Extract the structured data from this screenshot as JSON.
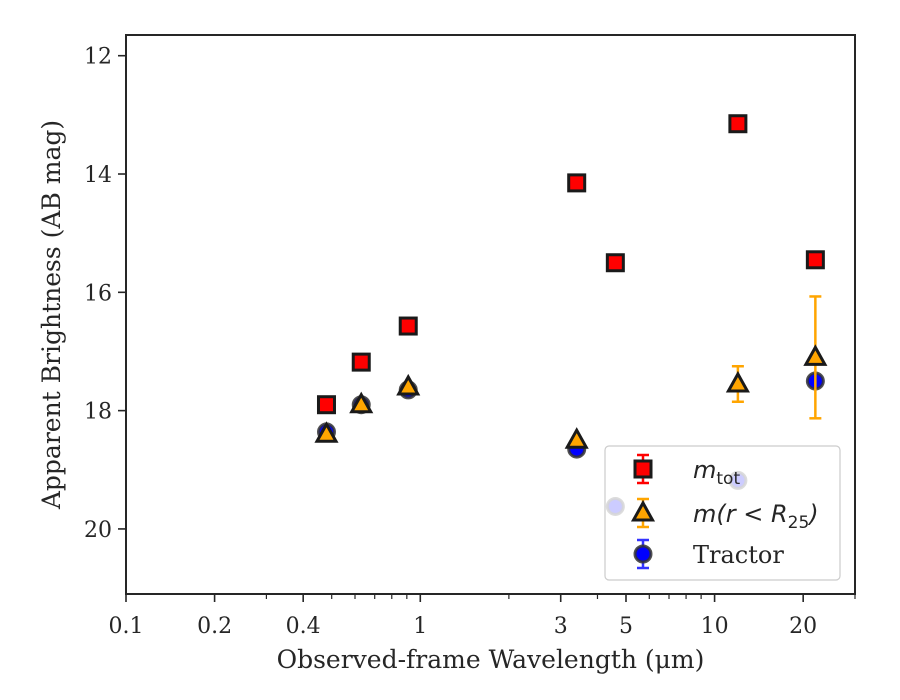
{
  "chart_data": {
    "type": "scatter",
    "xlabel": "Observed-frame Wavelength (μm)",
    "ylabel": "Apparent Brightness (AB mag)",
    "x_scale": "log",
    "xlim": [
      0.1,
      30
    ],
    "ylim": [
      21.1,
      11.65
    ],
    "y_inverted": true,
    "grid": false,
    "legend_position": "lower-right",
    "x_ticks": [
      {
        "value": 0.1,
        "label": "0.1"
      },
      {
        "value": 0.2,
        "label": "0.2"
      },
      {
        "value": 0.4,
        "label": "0.4"
      },
      {
        "value": 1,
        "label": "1"
      },
      {
        "value": 3,
        "label": "3"
      },
      {
        "value": 5,
        "label": "5"
      },
      {
        "value": 10,
        "label": "10"
      },
      {
        "value": 20,
        "label": "20"
      }
    ],
    "y_ticks": [
      {
        "value": 12,
        "label": "12"
      },
      {
        "value": 14,
        "label": "14"
      },
      {
        "value": 16,
        "label": "16"
      },
      {
        "value": 18,
        "label": "18"
      },
      {
        "value": 20,
        "label": "20"
      }
    ],
    "series": [
      {
        "name": "m_tot",
        "legend_base": "m",
        "legend_sub": "tot",
        "marker": "square",
        "color": "#ff0000",
        "edge": "#1a1a1a",
        "error_color": "#ff0000",
        "points": [
          {
            "x": 0.48,
            "y": 17.9
          },
          {
            "x": 0.63,
            "y": 17.18
          },
          {
            "x": 0.91,
            "y": 16.57
          },
          {
            "x": 3.4,
            "y": 14.15
          },
          {
            "x": 4.6,
            "y": 15.5
          },
          {
            "x": 12.0,
            "y": 13.15
          },
          {
            "x": 22.0,
            "y": 15.45
          }
        ]
      },
      {
        "name": "m(r<R25)",
        "legend_base": "m(r < R",
        "legend_sub": "25",
        "legend_close": ")",
        "marker": "triangle",
        "color": "#ffa500",
        "edge": "#1a1a1a",
        "error_color": "#ffa500",
        "points": [
          {
            "x": 0.48,
            "y": 18.4
          },
          {
            "x": 0.63,
            "y": 17.9
          },
          {
            "x": 0.91,
            "y": 17.6
          },
          {
            "x": 3.4,
            "y": 18.5
          },
          {
            "x": 12.0,
            "y": 17.55,
            "err": 0.3
          },
          {
            "x": 22.0,
            "y": 17.1,
            "err": 1.03
          }
        ]
      },
      {
        "name": "Tractor",
        "legend_base": "Tractor",
        "marker": "circle",
        "color": "#0000ff",
        "edge": "#333333",
        "error_color": "#3333ff",
        "points": [
          {
            "x": 0.48,
            "y": 18.36
          },
          {
            "x": 0.63,
            "y": 17.9
          },
          {
            "x": 0.91,
            "y": 17.65
          },
          {
            "x": 3.4,
            "y": 18.65
          },
          {
            "x": 4.6,
            "y": 19.62
          },
          {
            "x": 12.0,
            "y": 19.18
          },
          {
            "x": 22.0,
            "y": 17.5
          }
        ]
      }
    ]
  }
}
